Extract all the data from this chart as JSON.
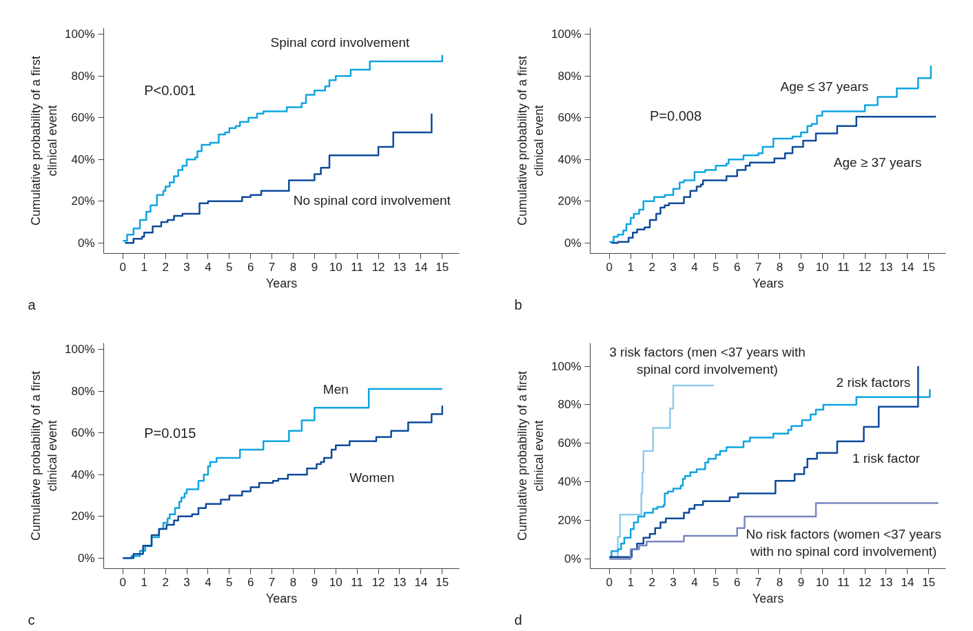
{
  "chart_data": [
    {
      "type": "step",
      "xlabel": "Years",
      "ylabel": "Cumulative probability of a first clinical event",
      "xlim": [
        -0.9,
        15.8
      ],
      "ylim": [
        -5,
        103
      ],
      "xticks": [
        0,
        1,
        2,
        3,
        4,
        5,
        6,
        7,
        8,
        9,
        10,
        11,
        12,
        13,
        14,
        15
      ],
      "yticks": [
        {
          "value": 0,
          "label": "0%"
        },
        {
          "value": 20,
          "label": "20%"
        },
        {
          "value": 40,
          "label": "40%"
        },
        {
          "value": 60,
          "label": "60%"
        },
        {
          "value": 80,
          "label": "80%"
        },
        {
          "value": 100,
          "label": "100%"
        }
      ],
      "annotations": [
        "P<0.001",
        "a"
      ],
      "series": [
        {
          "name": "Spinal cord involvement",
          "color": "#0ea5e0",
          "x": [
            0,
            0.2,
            0.4,
            0.5,
            0.8,
            1.1,
            1.3,
            1.6,
            1.9,
            2.0,
            2.2,
            2.4,
            2.6,
            2.8,
            3.0,
            3.4,
            3.5,
            3.7,
            4.1,
            4.5,
            4.8,
            5.0,
            5.3,
            5.5,
            5.9,
            6.3,
            6.6,
            7.7,
            8.4,
            8.6,
            9.0,
            9.5,
            9.7,
            10.0,
            10.7,
            11.6,
            15.0
          ],
          "values": [
            1,
            4,
            4,
            7,
            11,
            15,
            18,
            23,
            25,
            27,
            29,
            32,
            35,
            37,
            40,
            41,
            44,
            47,
            48,
            52,
            53,
            55,
            56,
            58,
            60,
            62,
            63,
            65,
            67,
            71,
            73,
            75,
            78,
            80,
            83,
            87,
            90
          ]
        },
        {
          "name": "No spinal cord involvement",
          "color": "#0d4a9a",
          "x": [
            0.1,
            0.5,
            0.9,
            1.0,
            1.4,
            1.8,
            2.1,
            2.4,
            2.8,
            3.6,
            4.0,
            5.6,
            6.0,
            6.5,
            7.8,
            9.0,
            9.3,
            9.7,
            12.0,
            12.7,
            14.5
          ],
          "values": [
            0,
            2,
            3,
            5,
            8,
            10,
            11,
            13,
            14,
            19,
            20,
            22,
            23,
            25,
            30,
            33,
            36,
            42,
            46,
            53,
            62
          ]
        }
      ]
    },
    {
      "type": "step",
      "xlabel": "Years",
      "ylabel": "Cumulative probability of a first clinical event",
      "xlim": [
        -0.9,
        15.8
      ],
      "ylim": [
        -5,
        103
      ],
      "xticks": [
        0,
        1,
        2,
        3,
        4,
        5,
        6,
        7,
        8,
        9,
        10,
        11,
        12,
        13,
        14,
        15
      ],
      "yticks": [
        {
          "value": 0,
          "label": "0%"
        },
        {
          "value": 20,
          "label": "20%"
        },
        {
          "value": 40,
          "label": "40%"
        },
        {
          "value": 60,
          "label": "60%"
        },
        {
          "value": 80,
          "label": "80%"
        },
        {
          "value": 100,
          "label": "100%"
        }
      ],
      "annotations": [
        "P=0.008",
        "b"
      ],
      "series": [
        {
          "name": "Age ≤ 37 years",
          "color": "#0ea5e0",
          "x": [
            0,
            0.2,
            0.4,
            0.65,
            0.8,
            1.0,
            1.15,
            1.4,
            1.6,
            2.1,
            2.6,
            3.0,
            3.3,
            3.5,
            4.0,
            4.5,
            5.0,
            5.5,
            5.6,
            6.3,
            7.0,
            7.2,
            7.7,
            8.6,
            9.0,
            9.3,
            9.5,
            9.75,
            10.0,
            12.0,
            12.6,
            13.5,
            14.5,
            15.1
          ],
          "values": [
            0.5,
            3,
            4,
            6,
            9,
            12,
            14,
            16,
            20,
            22,
            23,
            26,
            29,
            30,
            34,
            35,
            37,
            38,
            40,
            42,
            43,
            46,
            50,
            51,
            53,
            56,
            57,
            61,
            63,
            66,
            70,
            74,
            79,
            85
          ]
        },
        {
          "name": "Age ≥ 37 years",
          "color": "#0d4a9a",
          "x": [
            0.1,
            0.4,
            0.9,
            1.1,
            1.3,
            1.65,
            1.9,
            2.2,
            2.4,
            2.6,
            2.8,
            3.5,
            3.8,
            4.1,
            4.3,
            4.4,
            5.5,
            6.0,
            6.4,
            6.6,
            7.75,
            8.25,
            8.6,
            9.1,
            9.7,
            10.7,
            11.6,
            15.3
          ],
          "values": [
            0,
            0.5,
            2.5,
            5,
            6.5,
            7.5,
            11,
            14,
            17,
            18,
            19,
            22,
            25,
            27,
            28,
            30,
            32,
            35,
            37,
            38.5,
            40.5,
            43,
            46,
            49,
            52.5,
            56,
            60.5,
            61
          ]
        }
      ]
    },
    {
      "type": "step",
      "xlabel": "Years",
      "ylabel": "Cumulative probability of a first clinical event",
      "xlim": [
        -0.9,
        15.8
      ],
      "ylim": [
        -5,
        103
      ],
      "xticks": [
        0,
        1,
        2,
        3,
        4,
        5,
        6,
        7,
        8,
        9,
        10,
        11,
        12,
        13,
        14,
        15
      ],
      "yticks": [
        {
          "value": 0,
          "label": "0%"
        },
        {
          "value": 20,
          "label": "20%"
        },
        {
          "value": 40,
          "label": "40%"
        },
        {
          "value": 60,
          "label": "60%"
        },
        {
          "value": 80,
          "label": "80%"
        },
        {
          "value": 100,
          "label": "100%"
        }
      ],
      "annotations": [
        "P=0.015",
        "c"
      ],
      "series": [
        {
          "name": "Men",
          "color": "#0ea5e0",
          "x": [
            0,
            0.4,
            0.8,
            1.05,
            1.35,
            1.7,
            1.9,
            2.1,
            2.2,
            2.45,
            2.65,
            2.75,
            2.9,
            3.0,
            3.55,
            3.8,
            4.0,
            4.1,
            4.4,
            5.5,
            6.6,
            7.8,
            8.4,
            9.0,
            11.55,
            15.0
          ],
          "values": [
            0,
            1,
            3.5,
            5.7,
            10,
            14,
            17,
            19,
            21,
            24,
            27,
            29,
            31,
            33,
            37,
            40,
            44,
            46,
            48,
            52,
            56,
            61,
            66,
            72,
            81,
            81
          ]
        },
        {
          "name": "Women",
          "color": "#0d4a9a",
          "x": [
            0,
            0.5,
            0.95,
            1.35,
            1.7,
            2.05,
            2.4,
            2.6,
            3.25,
            3.55,
            3.9,
            4.6,
            5.0,
            5.6,
            6.0,
            6.4,
            7.05,
            7.3,
            7.75,
            8.65,
            9.1,
            9.3,
            9.45,
            9.8,
            10.0,
            10.65,
            11.9,
            12.6,
            13.4,
            14.5,
            15.0
          ],
          "values": [
            0,
            2,
            6,
            11,
            14,
            16,
            18,
            20,
            21,
            24,
            26,
            28,
            30,
            32,
            34,
            36,
            37,
            38,
            40,
            43,
            45,
            46,
            48,
            52,
            54,
            56,
            58,
            61,
            65,
            69,
            73
          ]
        }
      ]
    },
    {
      "type": "step",
      "xlabel": "Years",
      "ylabel": "Cumulative probability of a first clinical event",
      "xlim": [
        -0.9,
        15.8
      ],
      "ylim": [
        -5,
        112
      ],
      "xticks": [
        0,
        1,
        2,
        3,
        4,
        5,
        6,
        7,
        8,
        9,
        10,
        11,
        12,
        13,
        14,
        15
      ],
      "yticks": [
        {
          "value": 0,
          "label": "0%"
        },
        {
          "value": 20,
          "label": "20%"
        },
        {
          "value": 40,
          "label": "40%"
        },
        {
          "value": 60,
          "label": "60%"
        },
        {
          "value": 80,
          "label": "80%"
        },
        {
          "value": 100,
          "label": "100%"
        }
      ],
      "annotations": [
        "d"
      ],
      "series": [
        {
          "name": "3 risk factors (men <37 years with spinal cord involvement)",
          "color": "#8fcbeb",
          "x": [
            0,
            0.4,
            0.5,
            1.5,
            1.55,
            1.6,
            2.05,
            2.85,
            3.0,
            4.9
          ],
          "values": [
            1,
            11.5,
            23,
            34,
            45,
            56,
            68,
            78,
            90,
            90
          ]
        },
        {
          "name": "2 risk factors",
          "color": "#0ea5e0",
          "x": [
            0,
            0.1,
            0.4,
            0.55,
            0.7,
            1.0,
            1.15,
            1.35,
            1.65,
            2.05,
            2.25,
            2.55,
            2.6,
            2.75,
            3.0,
            3.35,
            3.45,
            3.55,
            3.8,
            4.1,
            4.5,
            4.65,
            5.0,
            5.2,
            5.5,
            6.3,
            6.6,
            7.7,
            8.4,
            8.55,
            9.05,
            9.45,
            9.7,
            10.05,
            11.6,
            15.05
          ],
          "values": [
            1,
            4,
            5,
            8,
            11,
            15.5,
            19,
            22,
            24,
            26,
            27,
            28,
            34,
            35,
            36.5,
            38,
            41.5,
            43,
            45,
            46.5,
            50,
            52,
            54,
            56,
            58,
            61,
            63,
            65,
            67,
            69,
            72,
            75,
            77.5,
            80,
            84,
            88
          ]
        },
        {
          "name": "1 risk factor",
          "color": "#0d4a9a",
          "x": [
            0,
            0.15,
            1.05,
            1.3,
            1.6,
            1.9,
            2.15,
            2.4,
            2.65,
            3.5,
            3.75,
            4.0,
            4.4,
            5.65,
            6.05,
            7.8,
            8.7,
            9.15,
            9.3,
            9.75,
            10.7,
            11.95,
            12.65,
            14.5
          ],
          "values": [
            1,
            1,
            5,
            8,
            11,
            13,
            16,
            19,
            21,
            24,
            26,
            28,
            30,
            32,
            34,
            40.5,
            44,
            47.5,
            52,
            55,
            61,
            68.5,
            79,
            100
          ]
        },
        {
          "name": "No risk factors (women <37 years with no spinal cord involvement)",
          "color": "#7a86c0",
          "x": [
            0,
            0.95,
            1.0,
            1.4,
            1.75,
            3.5,
            6.0,
            6.35,
            9.7,
            15.45
          ],
          "values": [
            0,
            0,
            5,
            7,
            9,
            12,
            16,
            22,
            29,
            29
          ]
        }
      ]
    }
  ]
}
